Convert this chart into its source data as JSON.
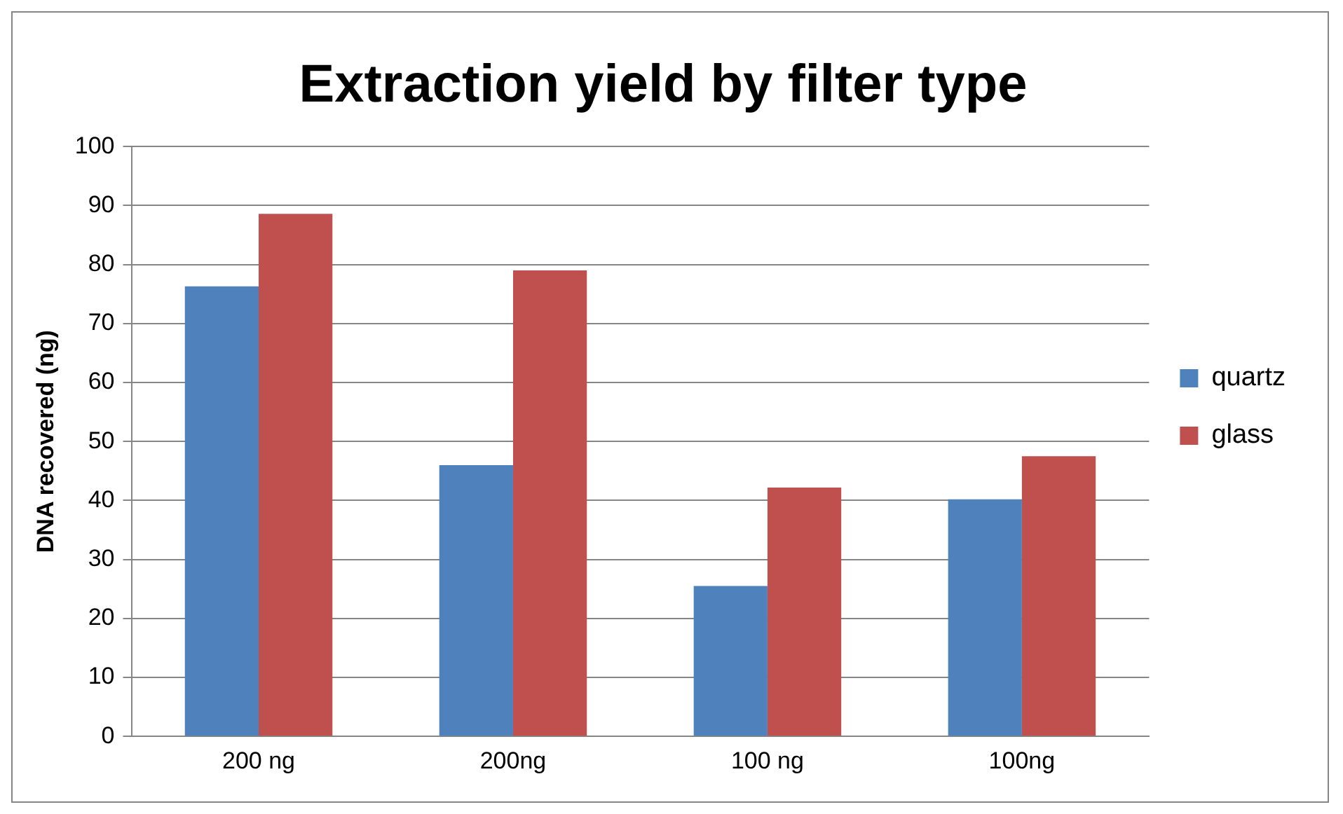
{
  "chart_data": {
    "type": "bar",
    "title": "Extraction yield by filter type",
    "ylabel": "DNA recovered (ng)",
    "categories": [
      "200 ng",
      "200ng",
      "100 ng",
      "100ng"
    ],
    "series": [
      {
        "name": "quartz",
        "color": "#4f81bd",
        "values": [
          76.3,
          46.0,
          25.5,
          40.2
        ]
      },
      {
        "name": "glass",
        "color": "#c0504d",
        "values": [
          88.6,
          79.0,
          42.2,
          47.5
        ]
      }
    ],
    "ylim": [
      0,
      100
    ],
    "yticks": [
      0,
      10,
      20,
      30,
      40,
      50,
      60,
      70,
      80,
      90,
      100
    ],
    "grid": "y",
    "legend": "right"
  }
}
